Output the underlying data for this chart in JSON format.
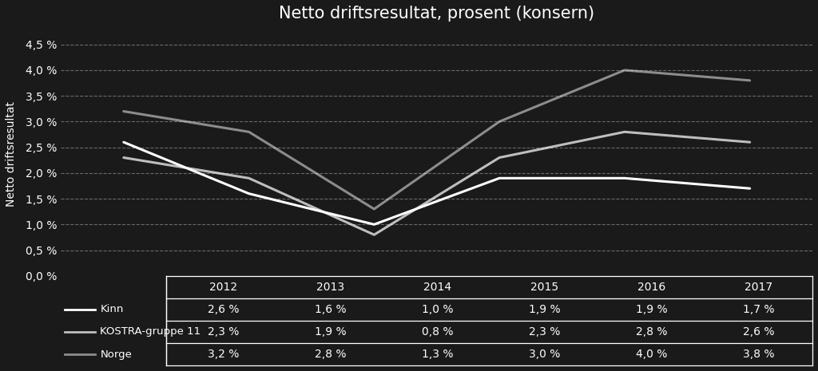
{
  "title": "Netto driftsresultat, prosent (konsern)",
  "ylabel": "Netto driftsresultat",
  "years": [
    2012,
    2013,
    2014,
    2015,
    2016,
    2017
  ],
  "series": [
    {
      "label": "Kinn",
      "values": [
        2.6,
        1.6,
        1.0,
        1.9,
        1.9,
        1.7
      ],
      "color": "#ffffff",
      "linewidth": 2.2
    },
    {
      "label": "KOSTRA-gruppe 11",
      "values": [
        2.3,
        1.9,
        0.8,
        2.3,
        2.8,
        2.6
      ],
      "color": "#ffffff",
      "linewidth": 2.2
    },
    {
      "label": "Norge",
      "values": [
        3.2,
        2.8,
        1.3,
        3.0,
        4.0,
        3.8
      ],
      "color": "#ffffff",
      "linewidth": 2.2
    }
  ],
  "ylim": [
    0.0,
    4.75
  ],
  "yticks": [
    0.0,
    0.5,
    1.0,
    1.5,
    2.0,
    2.5,
    3.0,
    3.5,
    4.0,
    4.5
  ],
  "ytick_labels": [
    "0,0 %",
    "0,5 %",
    "1,0 %",
    "1,5 %",
    "2,0 %",
    "2,5 %",
    "3,0 %",
    "3,5 %",
    "4,0 %",
    "4,5 %"
  ],
  "background_color": "#1a1a1a",
  "grid_color": "#ffffff",
  "text_color": "#ffffff",
  "table_data": [
    [
      "2,6 %",
      "1,6 %",
      "1,0 %",
      "1,9 %",
      "1,9 %",
      "1,7 %"
    ],
    [
      "2,3 %",
      "1,9 %",
      "0,8 %",
      "2,3 %",
      "2,8 %",
      "2,6 %"
    ],
    [
      "3,2 %",
      "2,8 %",
      "1,3 %",
      "3,0 %",
      "4,0 %",
      "3,8 %"
    ]
  ],
  "line_alphas": [
    1.0,
    0.72,
    0.5
  ]
}
